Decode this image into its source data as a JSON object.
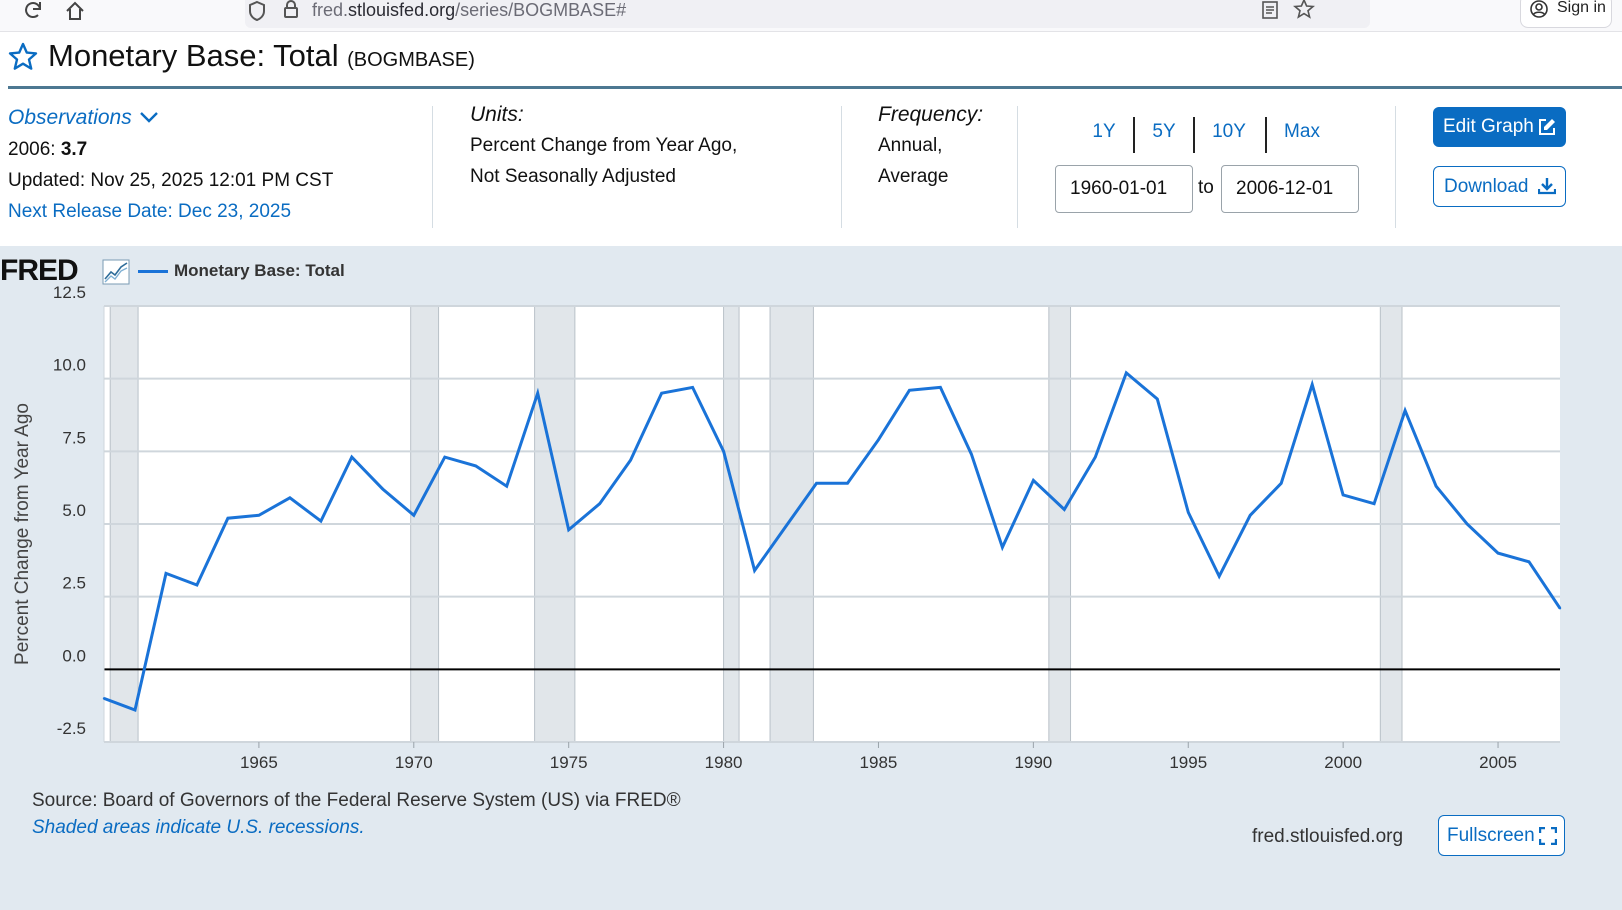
{
  "browser": {
    "url_prefix": "fred.",
    "url_domain": "stlouisfed.org",
    "url_path": "/series/BOGMBASE#",
    "sign_in_label": "Sign in"
  },
  "header": {
    "title": "Monetary Base: Total",
    "series_code": "(BOGMBASE)"
  },
  "observations": {
    "label": "Observations",
    "period": "2006:",
    "value": "3.7",
    "updated": "Updated: Nov 25, 2025 12:01 PM CST",
    "next_release": "Next Release Date: Dec 23, 2025"
  },
  "units": {
    "label": "Units:",
    "line1": "Percent Change from Year Ago,",
    "line2": "Not Seasonally Adjusted"
  },
  "frequency": {
    "label": "Frequency:",
    "line1": "Annual,",
    "line2": "Average"
  },
  "range": {
    "buttons": [
      "1Y",
      "5Y",
      "10Y",
      "Max"
    ],
    "start_date": "1960-01-01",
    "to_label": "to",
    "end_date": "2006-12-01"
  },
  "actions": {
    "edit_graph": "Edit Graph",
    "download": "Download",
    "fullscreen": "Fullscreen"
  },
  "chart_footer": {
    "logo": "FRED",
    "source": "Source: Board of Governors of the Federal Reserve System (US) via FRED®",
    "recessions_note": "Shaded areas indicate U.S. recessions.",
    "site": "fred.stlouisfed.org"
  },
  "colors": {
    "series": "#1a73d8",
    "link": "#0a6cc2",
    "panel_bg": "#e1e9f0",
    "recession": "#e1e6ea"
  },
  "chart_data": {
    "type": "line",
    "legend": "Monetary Base: Total",
    "ylabel": "Percent Change from Year Ago",
    "xlabel": "",
    "xlim": [
      1960,
      2007
    ],
    "ylim": [
      -2.5,
      12.5
    ],
    "yticks": [
      "12.5",
      "10.0",
      "7.5",
      "5.0",
      "2.5",
      "0.0",
      "-2.5"
    ],
    "ytick_values": [
      12.5,
      10.0,
      7.5,
      5.0,
      2.5,
      0.0,
      -2.5
    ],
    "xticks": [
      "1965",
      "1970",
      "1975",
      "1980",
      "1985",
      "1990",
      "1995",
      "2000",
      "2005"
    ],
    "xtick_values": [
      1965,
      1970,
      1975,
      1980,
      1985,
      1990,
      1995,
      2000,
      2005
    ],
    "recessions": [
      [
        1960.2,
        1961.1
      ],
      [
        1969.9,
        1970.8
      ],
      [
        1973.9,
        1975.2
      ],
      [
        1980.0,
        1980.5
      ],
      [
        1981.5,
        1982.9
      ],
      [
        1990.5,
        1991.2
      ],
      [
        2001.2,
        2001.9
      ]
    ],
    "series": [
      {
        "name": "Monetary Base: Total",
        "x": [
          1960,
          1961,
          1962,
          1963,
          1964,
          1965,
          1966,
          1967,
          1968,
          1969,
          1970,
          1971,
          1972,
          1973,
          1974,
          1975,
          1976,
          1977,
          1978,
          1979,
          1980,
          1981,
          1982,
          1983,
          1984,
          1985,
          1986,
          1987,
          1988,
          1989,
          1990,
          1991,
          1992,
          1993,
          1994,
          1995,
          1996,
          1997,
          1998,
          1999,
          2000,
          2001,
          2002,
          2003,
          2004,
          2005,
          2006,
          2007
        ],
        "values": [
          -1.0,
          -1.4,
          3.3,
          2.9,
          5.2,
          5.3,
          5.9,
          5.1,
          7.3,
          6.2,
          5.3,
          7.3,
          7.0,
          6.3,
          9.5,
          4.8,
          5.7,
          7.2,
          9.5,
          9.7,
          7.5,
          3.4,
          4.9,
          6.4,
          6.4,
          7.9,
          9.6,
          9.7,
          7.4,
          4.2,
          6.5,
          5.5,
          7.3,
          10.2,
          9.3,
          5.4,
          3.2,
          5.3,
          6.4,
          9.8,
          6.0,
          5.7,
          8.9,
          6.3,
          5.0,
          4.0,
          3.7,
          2.1
        ]
      }
    ]
  }
}
